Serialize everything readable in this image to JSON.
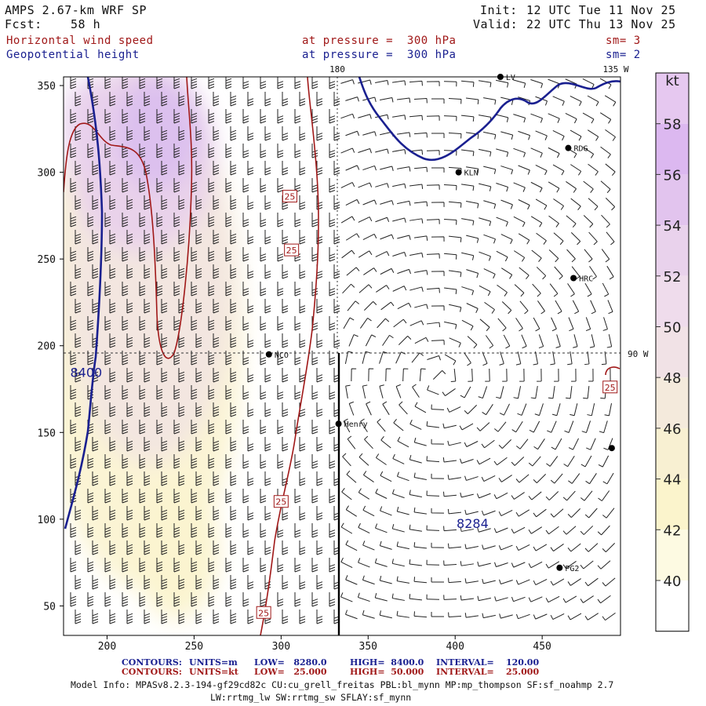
{
  "header": {
    "model_title": "AMPS 2.67-km WRF SP",
    "forecast_label": "Fcst:",
    "forecast_value": "58 h",
    "init_label": "Init:",
    "init_value": "12 UTC Tue 11 Nov 25",
    "valid_label": "Valid:",
    "valid_value": "22 UTC Thu 13 Nov 25"
  },
  "fields": [
    {
      "name": "Horizontal wind speed",
      "level": "at pressure =  300 hPa",
      "smoothing": "sm= 3",
      "color": "#a01818"
    },
    {
      "name": "Geopotential height",
      "level": "at pressure =  300 hPa",
      "smoothing": "sm= 2",
      "color": "#1a2090"
    }
  ],
  "map": {
    "x_ticks": [
      "200",
      "250",
      "300",
      "350",
      "400",
      "450"
    ],
    "y_ticks": [
      "50",
      "100",
      "150",
      "200",
      "250",
      "300",
      "350"
    ],
    "x_range": [
      175,
      495
    ],
    "y_range": [
      33,
      355
    ],
    "longitude_labels": [
      {
        "text": "180",
        "x": 330,
        "edge": "top"
      },
      {
        "text": "135 W",
        "edge": "top-right"
      },
      {
        "text": "90 W",
        "edge": "right",
        "y": 195
      }
    ],
    "grid_lines": {
      "meridian_x": 330,
      "parallel_y": 195
    },
    "stations": [
      {
        "id": "station-lv",
        "label": "LV",
        "x": 426,
        "y": 355
      },
      {
        "id": "station-rdg",
        "label": "RDG",
        "x": 465,
        "y": 314
      },
      {
        "id": "station-kln",
        "label": "KLN",
        "x": 402,
        "y": 300
      },
      {
        "id": "station-hrc",
        "label": "HRC",
        "x": 468,
        "y": 239
      },
      {
        "id": "station-nco",
        "label": "NCO",
        "x": 293,
        "y": 195
      },
      {
        "id": "station-henry",
        "label": "Henry",
        "x": 333,
        "y": 155
      },
      {
        "id": "station-edge",
        "label": "",
        "x": 490,
        "y": 141
      },
      {
        "id": "station-pg2",
        "label": "PG2",
        "x": 460,
        "y": 72
      }
    ],
    "labels": {
      "height_high": "8400",
      "height_low": "8284",
      "wind_contour": "25"
    },
    "high_label_pos": {
      "x": 188,
      "y": 182
    },
    "low_label_pos": {
      "x": 410,
      "y": 95
    },
    "wind_label_positions": [
      [
        305,
        286
      ],
      [
        306,
        255
      ],
      [
        300,
        110
      ],
      [
        290,
        46
      ],
      [
        489,
        176
      ]
    ]
  },
  "colorbar": {
    "unit": "kt",
    "labels": [
      "58",
      "56",
      "54",
      "52",
      "50",
      "48",
      "46",
      "44",
      "42",
      "40"
    ],
    "colors": [
      "#e6c8f0",
      "#dcb8f0",
      "#e2c4ee",
      "#e9d2ec",
      "#efdcec",
      "#f1e2e6",
      "#f4eadc",
      "#f8f0d2",
      "#fbf4cc",
      "#fdfae2",
      "#ffffff"
    ]
  },
  "footer": {
    "rows": [
      {
        "color": "#1a2090",
        "prefix": "CONTOURS:",
        "units": "UNITS=m",
        "low": "LOW=   8280.0",
        "high": "HIGH=  8400.0",
        "interval": "INTERVAL=    120.00"
      },
      {
        "color": "#a01818",
        "prefix": "CONTOURS:",
        "units": "UNITS=kt",
        "low": "LOW=   25.000",
        "high": "HIGH=  50.000",
        "interval": "INTERVAL=    25.000"
      }
    ],
    "model_info_1": "Model Info: MPASv8.2.3-194-gf29cd82c CU:cu_grell_freitas PBL:bl_mynn MP:mp_thompson SF:sf_noahmp 2.7",
    "model_info_2": "LW:rrtmg_lw SW:rrtmg_sw SFLAY:sf_mynn"
  }
}
